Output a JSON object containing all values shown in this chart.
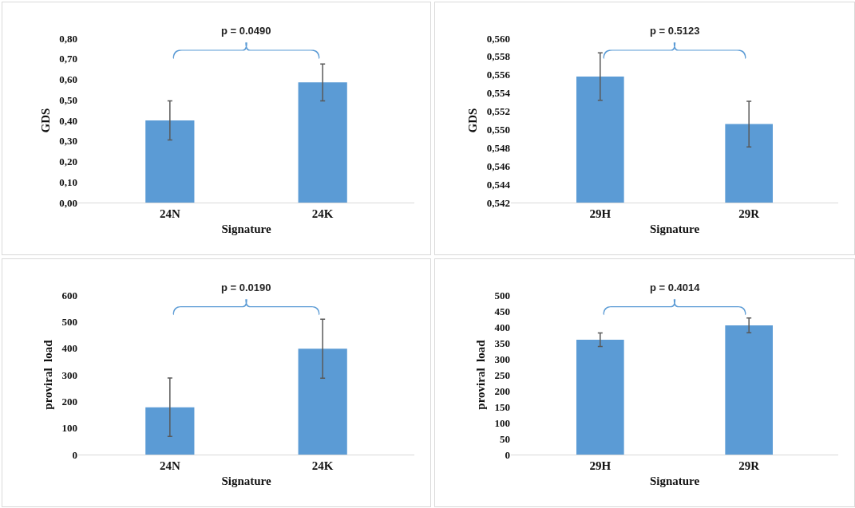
{
  "chart_data": [
    {
      "type": "bar",
      "categories": [
        "24N",
        "24K"
      ],
      "values": [
        0.4,
        0.585
      ],
      "errors": [
        0.095,
        0.09
      ],
      "color": "#5b9bd5",
      "xlabel": "Signature",
      "ylabel": "GDS",
      "ylim": [
        0,
        0.8
      ],
      "yticks": [
        {
          "value": 0,
          "label": "0,00"
        },
        {
          "value": 0.1,
          "label": "0,10"
        },
        {
          "value": 0.2,
          "label": "0,20"
        },
        {
          "value": 0.3,
          "label": "0,30"
        },
        {
          "value": 0.4,
          "label": "0,40"
        },
        {
          "value": 0.5,
          "label": "0,50"
        },
        {
          "value": 0.6,
          "label": "0,60"
        },
        {
          "value": 0.7,
          "label": "0,70"
        },
        {
          "value": 0.8,
          "label": "0,80"
        }
      ],
      "annotations": [
        "p = 0.0490"
      ]
    },
    {
      "type": "bar",
      "categories": [
        "29H",
        "29R"
      ],
      "values": [
        0.5558,
        0.5506
      ],
      "errors": [
        0.0026,
        0.0025
      ],
      "color": "#5b9bd5",
      "xlabel": "Signature",
      "ylabel": "GDS",
      "ylim": [
        0.542,
        0.56
      ],
      "yticks": [
        {
          "value": 0.542,
          "label": "0,542"
        },
        {
          "value": 0.544,
          "label": "0,544"
        },
        {
          "value": 0.546,
          "label": "0,546"
        },
        {
          "value": 0.548,
          "label": "0,548"
        },
        {
          "value": 0.55,
          "label": "0,550"
        },
        {
          "value": 0.552,
          "label": "0,552"
        },
        {
          "value": 0.554,
          "label": "0,554"
        },
        {
          "value": 0.556,
          "label": "0,556"
        },
        {
          "value": 0.558,
          "label": "0,558"
        },
        {
          "value": 0.56,
          "label": "0,560"
        }
      ],
      "annotations": [
        "p = 0.5123"
      ]
    },
    {
      "type": "bar",
      "categories": [
        "24N",
        "24K"
      ],
      "values": [
        178,
        398
      ],
      "errors": [
        110,
        111
      ],
      "color": "#5b9bd5",
      "xlabel": "Signature",
      "ylabel": "proviral  load",
      "ylim": [
        0,
        600
      ],
      "yticks": [
        0,
        100,
        200,
        300,
        400,
        500,
        600
      ],
      "annotations": [
        "p = 0.0190"
      ]
    },
    {
      "type": "bar",
      "categories": [
        "29H",
        "29R"
      ],
      "values": [
        360,
        405
      ],
      "errors": [
        21,
        23
      ],
      "color": "#5b9bd5",
      "xlabel": "Signature",
      "ylabel": "proviral  load",
      "ylim": [
        0,
        500
      ],
      "yticks": [
        0,
        50,
        100,
        150,
        200,
        250,
        300,
        350,
        400,
        450,
        500
      ],
      "annotations": [
        "p = 0.4014"
      ]
    }
  ]
}
